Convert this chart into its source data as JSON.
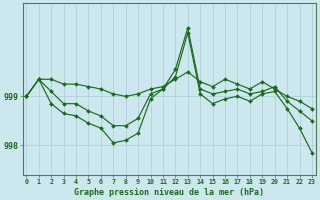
{
  "title": "Graphe pression niveau de la mer (hPa)",
  "background_color": "#cce8ee",
  "grid_color": "#aacdd6",
  "line_color": "#1a6b1a",
  "spine_color": "#557755",
  "xlim": [
    -0.3,
    23.3
  ],
  "ylim": [
    997.4,
    1000.9
  ],
  "yticks": [
    998,
    999
  ],
  "ytick_labels": [
    "998",
    "999"
  ],
  "xticks": [
    0,
    1,
    2,
    3,
    4,
    5,
    6,
    7,
    8,
    9,
    10,
    11,
    12,
    13,
    14,
    15,
    16,
    17,
    18,
    19,
    20,
    21,
    22,
    23
  ],
  "series": [
    [
      999.0,
      999.35,
      999.35,
      999.25,
      999.25,
      999.2,
      999.15,
      999.05,
      999.0,
      999.05,
      999.15,
      999.2,
      999.35,
      999.5,
      999.3,
      999.2,
      999.35,
      999.25,
      999.15,
      999.3,
      999.15,
      999.0,
      998.9,
      998.75
    ],
    [
      999.0,
      999.35,
      999.1,
      998.85,
      998.85,
      998.7,
      998.6,
      998.4,
      998.4,
      998.55,
      999.05,
      999.15,
      999.55,
      1000.4,
      999.15,
      999.05,
      999.1,
      999.15,
      999.05,
      999.1,
      999.2,
      998.9,
      998.7,
      998.5
    ],
    [
      999.0,
      999.35,
      998.85,
      998.65,
      998.6,
      998.45,
      998.35,
      998.05,
      998.1,
      998.25,
      998.95,
      999.15,
      999.4,
      1000.3,
      999.05,
      998.85,
      998.95,
      999.0,
      998.9,
      999.05,
      999.1,
      998.75,
      998.35,
      997.85
    ]
  ],
  "marker": "D",
  "markersize": 2.0,
  "linewidth": 0.85
}
